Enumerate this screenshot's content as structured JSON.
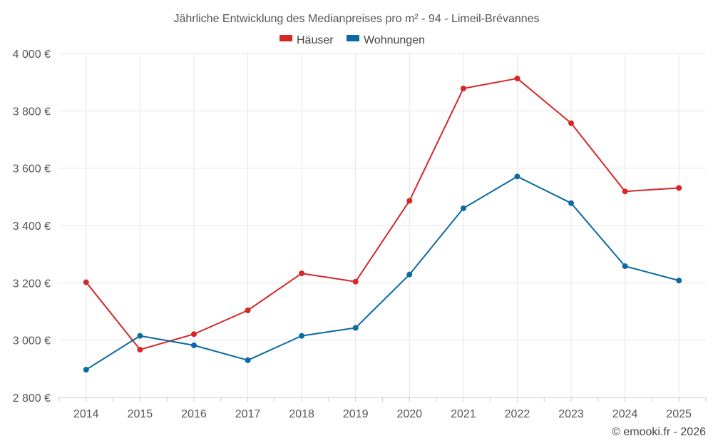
{
  "chart_data": {
    "type": "line",
    "title": "Jährliche Entwicklung des Medianpreises pro m² - 94 - Limeil-Brévannes",
    "xlabel": "",
    "ylabel": "",
    "categories": [
      "2014",
      "2015",
      "2016",
      "2017",
      "2018",
      "2019",
      "2020",
      "2021",
      "2022",
      "2023",
      "2024",
      "2025"
    ],
    "ylim": [
      2800,
      4000
    ],
    "yticks": [
      2800,
      3000,
      3200,
      3400,
      3600,
      3800,
      4000
    ],
    "ytick_labels": [
      "2 800 €",
      "3 000 €",
      "3 200 €",
      "3 400 €",
      "3 600 €",
      "3 800 €",
      "4 000 €"
    ],
    "grid": true,
    "legend_position": "top-center",
    "series": [
      {
        "name": "Häuser",
        "color": "#d62728",
        "values": [
          3202,
          2967,
          3021,
          3104,
          3233,
          3204,
          3486,
          3878,
          3913,
          3757,
          3519,
          3531
        ]
      },
      {
        "name": "Wohnungen",
        "color": "#0b6aa2",
        "values": [
          2897,
          3015,
          2982,
          2930,
          3015,
          3043,
          3229,
          3460,
          3571,
          3478,
          3258,
          3208
        ]
      }
    ]
  },
  "credit": "© emooki.fr - 2026"
}
